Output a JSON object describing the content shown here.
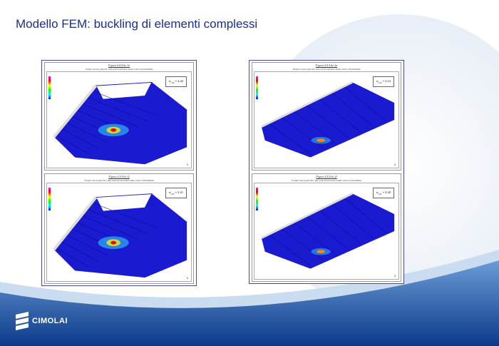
{
  "slide": {
    "title": "Modello FEM: buckling di elementi complessi"
  },
  "figures": [
    {
      "caption": "Figura 4.4.4.6c-1a",
      "subcaption": "Fondo concio pila P4: lato interno/primo modo critico d'instabilità",
      "alpha_label": "α",
      "alpha_sub": "cr,E",
      "alpha_value": "= 2.42",
      "shape": "curved"
    },
    {
      "caption": "Figura 4.4.4.6c-1f",
      "subcaption": "Fondo concio pila P4: lato interno/secondo modo critico d'instabilità",
      "alpha_label": "α",
      "alpha_sub": "cr,E",
      "alpha_value": "= 2.21",
      "shape": "curved"
    },
    {
      "caption": "Figura 4.4.4.6c-2a",
      "subcaption": "Fondo concio pila P4: lato esterno/primo modo critico d'instabilità",
      "alpha_label": "α",
      "alpha_sub": "cr,E",
      "alpha_value": "= 2.12",
      "shape": "flat"
    },
    {
      "caption": "Figura 4.4.4.6c-2f",
      "subcaption": "Fondo concio pila P4: lato esterno/secondo modo critico d'instabilità",
      "alpha_label": "α",
      "alpha_sub": "cr,E",
      "alpha_value": "= 2.20",
      "shape": "flat"
    }
  ],
  "logo": {
    "text": "CIMOLAI"
  },
  "colors": {
    "title": "#1a2f8c",
    "mesh": "#1a1ad0",
    "background_swoosh": "#2a5fb0"
  }
}
